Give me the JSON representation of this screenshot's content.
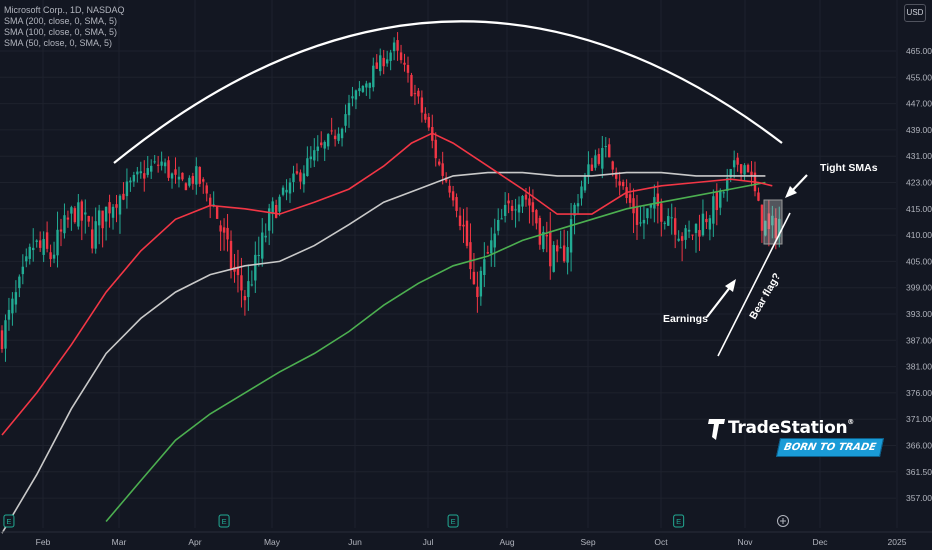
{
  "legend": {
    "title": "Microsoft Corp., 1D, NASDAQ",
    "sma200": "SMA (200, close, 0, SMA, 5)",
    "sma100": "SMA (100, close, 0, SMA, 5)",
    "sma50": "SMA (50, close, 0, SMA, 5)"
  },
  "currency_label": "USD",
  "brand": {
    "name": "TradeStation",
    "tagline": "BORN TO TRADE",
    "trademark": "®"
  },
  "colors": {
    "background": "#131722",
    "up": "#22ab94",
    "down": "#f23645",
    "sma50": "#f23645",
    "sma100": "#c9c9c9",
    "sma200": "#4caf50"
  },
  "chart_data": {
    "type": "candlestick",
    "symbol": "Microsoft Corp.",
    "interval": "1D",
    "exchange": "NASDAQ",
    "y_axis_labels": [
      "465.00",
      "455.00",
      "447.00",
      "439.00",
      "431.00",
      "423.00",
      "415.00",
      "410.00",
      "405.00",
      "399.00",
      "393.00",
      "387.00",
      "381.00",
      "376.00",
      "371.00",
      "366.00",
      "361.50",
      "357.00"
    ],
    "x_axis_labels": [
      "Feb",
      "Mar",
      "Apr",
      "May",
      "Jun",
      "Jul",
      "Aug",
      "Sep",
      "Oct",
      "Nov",
      "Dec",
      "2025"
    ],
    "price_path": [
      [
        0,
        388
      ],
      [
        5,
        399
      ],
      [
        9,
        408
      ],
      [
        14,
        406
      ],
      [
        21,
        415
      ],
      [
        26,
        410
      ],
      [
        31,
        416
      ],
      [
        36,
        421
      ],
      [
        41,
        426
      ],
      [
        46,
        429
      ],
      [
        51,
        422
      ],
      [
        56,
        425
      ],
      [
        61,
        416
      ],
      [
        66,
        404
      ],
      [
        70,
        397
      ],
      [
        74,
        406
      ],
      [
        78,
        415
      ],
      [
        82,
        420
      ],
      [
        86,
        426
      ],
      [
        90,
        431
      ],
      [
        95,
        436
      ],
      [
        100,
        446
      ],
      [
        105,
        454
      ],
      [
        110,
        462
      ],
      [
        113,
        466
      ],
      [
        118,
        452
      ],
      [
        122,
        442
      ],
      [
        126,
        428
      ],
      [
        130,
        420
      ],
      [
        134,
        408
      ],
      [
        136,
        397
      ],
      [
        140,
        406
      ],
      [
        145,
        414
      ],
      [
        150,
        420
      ],
      [
        155,
        411
      ],
      [
        160,
        404
      ],
      [
        163,
        409
      ],
      [
        167,
        422
      ],
      [
        171,
        431
      ],
      [
        175,
        432
      ],
      [
        180,
        418
      ],
      [
        184,
        412
      ],
      [
        188,
        416
      ],
      [
        193,
        414
      ],
      [
        197,
        409
      ],
      [
        202,
        413
      ],
      [
        207,
        418
      ],
      [
        210,
        425
      ],
      [
        212,
        429
      ],
      [
        215,
        428
      ],
      [
        218,
        415
      ],
      [
        221,
        410
      ],
      [
        224,
        413
      ]
    ],
    "sma50": [
      [
        0,
        368
      ],
      [
        10,
        376
      ],
      [
        20,
        386
      ],
      [
        30,
        398
      ],
      [
        40,
        407
      ],
      [
        50,
        413
      ],
      [
        60,
        416
      ],
      [
        70,
        415
      ],
      [
        80,
        414
      ],
      [
        90,
        417
      ],
      [
        100,
        421
      ],
      [
        110,
        428
      ],
      [
        118,
        435
      ],
      [
        124,
        438
      ],
      [
        130,
        435
      ],
      [
        140,
        428
      ],
      [
        150,
        421
      ],
      [
        160,
        414
      ],
      [
        170,
        414
      ],
      [
        180,
        420
      ],
      [
        190,
        422
      ],
      [
        200,
        423
      ],
      [
        210,
        424
      ],
      [
        218,
        423
      ],
      [
        222,
        422
      ]
    ],
    "sma100": [
      [
        0,
        351
      ],
      [
        10,
        361
      ],
      [
        20,
        373
      ],
      [
        30,
        384
      ],
      [
        40,
        392
      ],
      [
        50,
        398
      ],
      [
        60,
        402
      ],
      [
        70,
        404
      ],
      [
        80,
        405
      ],
      [
        90,
        408
      ],
      [
        100,
        412
      ],
      [
        110,
        417
      ],
      [
        120,
        421
      ],
      [
        130,
        425
      ],
      [
        140,
        426
      ],
      [
        150,
        426
      ],
      [
        160,
        425
      ],
      [
        170,
        425
      ],
      [
        180,
        426
      ],
      [
        190,
        426
      ],
      [
        200,
        425
      ],
      [
        210,
        425
      ],
      [
        220,
        425
      ]
    ],
    "sma200": [
      [
        30,
        353
      ],
      [
        40,
        360
      ],
      [
        50,
        367
      ],
      [
        60,
        372
      ],
      [
        70,
        376
      ],
      [
        80,
        380
      ],
      [
        90,
        384
      ],
      [
        100,
        389
      ],
      [
        110,
        395
      ],
      [
        120,
        400
      ],
      [
        130,
        404
      ],
      [
        140,
        406
      ],
      [
        150,
        409
      ],
      [
        160,
        411
      ],
      [
        170,
        413
      ],
      [
        180,
        415
      ],
      [
        190,
        417
      ],
      [
        200,
        419
      ],
      [
        210,
        421
      ],
      [
        220,
        423
      ]
    ],
    "earnings_markers_at_day": [
      2,
      64,
      130,
      195
    ],
    "annotations": {
      "tight_smas": "Tight SMAs",
      "earnings": "Earnings",
      "bear_flag": "Bear flag?"
    }
  }
}
